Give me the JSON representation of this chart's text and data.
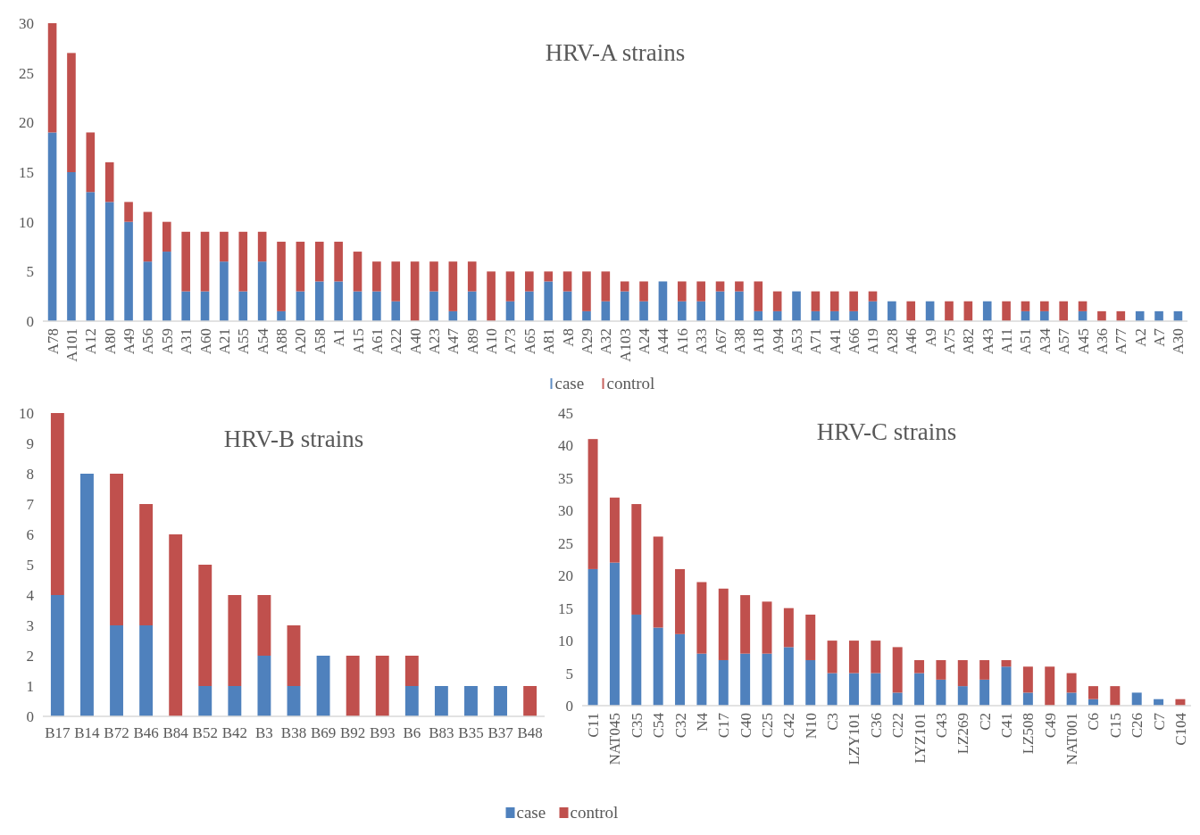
{
  "chart_data": [
    {
      "type": "bar",
      "title": "HRV-A strains",
      "stacked": true,
      "legend": "bottom",
      "ylim": [
        0,
        30
      ],
      "yticks": [
        0,
        5,
        10,
        15,
        20,
        25,
        30
      ],
      "categories": [
        "A78",
        "A101",
        "A12",
        "A80",
        "A49",
        "A56",
        "A59",
        "A31",
        "A60",
        "A21",
        "A55",
        "A54",
        "A88",
        "A20",
        "A58",
        "A1",
        "A15",
        "A61",
        "A22",
        "A40",
        "A23",
        "A47",
        "A89",
        "A10",
        "A73",
        "A65",
        "A81",
        "A8",
        "A29",
        "A32",
        "A103",
        "A24",
        "A44",
        "A16",
        "A33",
        "A67",
        "A38",
        "A18",
        "A94",
        "A53",
        "A71",
        "A41",
        "A66",
        "A19",
        "A28",
        "A46",
        "A9",
        "A75",
        "A82",
        "A43",
        "A11",
        "A51",
        "A34",
        "A57",
        "A45",
        "A36",
        "A77",
        "A2",
        "A7",
        "A30"
      ],
      "series": [
        {
          "name": "case",
          "color": "#4f81bd",
          "values": [
            19,
            15,
            13,
            12,
            10,
            6,
            7,
            3,
            3,
            6,
            3,
            6,
            1,
            3,
            4,
            4,
            3,
            3,
            2,
            0,
            3,
            1,
            3,
            0,
            2,
            3,
            4,
            3,
            1,
            2,
            3,
            2,
            4,
            2,
            2,
            3,
            3,
            1,
            1,
            3,
            1,
            1,
            1,
            2,
            2,
            0,
            2,
            0,
            0,
            2,
            0,
            1,
            1,
            0,
            1,
            0,
            0,
            1,
            1,
            1
          ]
        },
        {
          "name": "control",
          "color": "#c0504d",
          "values": [
            11,
            12,
            6,
            4,
            2,
            5,
            3,
            6,
            6,
            3,
            6,
            3,
            7,
            5,
            4,
            4,
            4,
            3,
            4,
            6,
            3,
            5,
            3,
            5,
            3,
            2,
            1,
            2,
            4,
            3,
            1,
            2,
            0,
            2,
            2,
            1,
            1,
            3,
            2,
            0,
            2,
            2,
            2,
            1,
            0,
            2,
            0,
            2,
            2,
            0,
            2,
            1,
            1,
            2,
            1,
            1,
            1,
            0,
            0,
            0
          ]
        }
      ]
    },
    {
      "type": "bar",
      "title": "HRV-B strains",
      "stacked": true,
      "ylim": [
        0,
        10
      ],
      "yticks": [
        0,
        1,
        2,
        3,
        4,
        5,
        6,
        7,
        8,
        9,
        10
      ],
      "categories": [
        "B17",
        "B14",
        "B72",
        "B46",
        "B84",
        "B52",
        "B42",
        "B3",
        "B38",
        "B69",
        "B92",
        "B93",
        "B6",
        "B83",
        "B35",
        "B37",
        "B48"
      ],
      "series": [
        {
          "color": "#4f81bd",
          "values": [
            4,
            8,
            3,
            3,
            0,
            1,
            1,
            2,
            1,
            2,
            0,
            0,
            1,
            1,
            1,
            1,
            0
          ]
        },
        {
          "color": "#c0504d",
          "values": [
            6,
            0,
            5,
            4,
            6,
            4,
            3,
            2,
            2,
            0,
            2,
            2,
            1,
            0,
            0,
            0,
            1
          ]
        }
      ]
    },
    {
      "type": "bar",
      "title": "HRV-C strains",
      "stacked": true,
      "legend": "bottom",
      "ylim": [
        0,
        45
      ],
      "yticks": [
        0,
        5,
        10,
        15,
        20,
        25,
        30,
        35,
        40,
        45
      ],
      "categories": [
        "C11",
        "NAT045",
        "C35",
        "C54",
        "C32",
        "N4",
        "C17",
        "C40",
        "C25",
        "C42",
        "N10",
        "C3",
        "LZY101",
        "C36",
        "C22",
        "LYZ101",
        "C43",
        "LZ269",
        "C2",
        "C41",
        "LZ508",
        "C49",
        "NAT001",
        "C6",
        "C15",
        "C26",
        "C7",
        "C104"
      ],
      "series": [
        {
          "name": "case",
          "color": "#4f81bd",
          "values": [
            21,
            22,
            14,
            12,
            11,
            8,
            7,
            8,
            8,
            9,
            7,
            5,
            5,
            5,
            2,
            5,
            4,
            3,
            4,
            6,
            2,
            0,
            2,
            1,
            0,
            2,
            1,
            0
          ]
        },
        {
          "name": "control",
          "color": "#c0504d",
          "values": [
            20,
            10,
            17,
            14,
            10,
            11,
            11,
            9,
            8,
            6,
            7,
            5,
            5,
            5,
            7,
            2,
            3,
            4,
            3,
            1,
            4,
            6,
            3,
            2,
            3,
            0,
            0,
            1
          ]
        }
      ]
    }
  ]
}
